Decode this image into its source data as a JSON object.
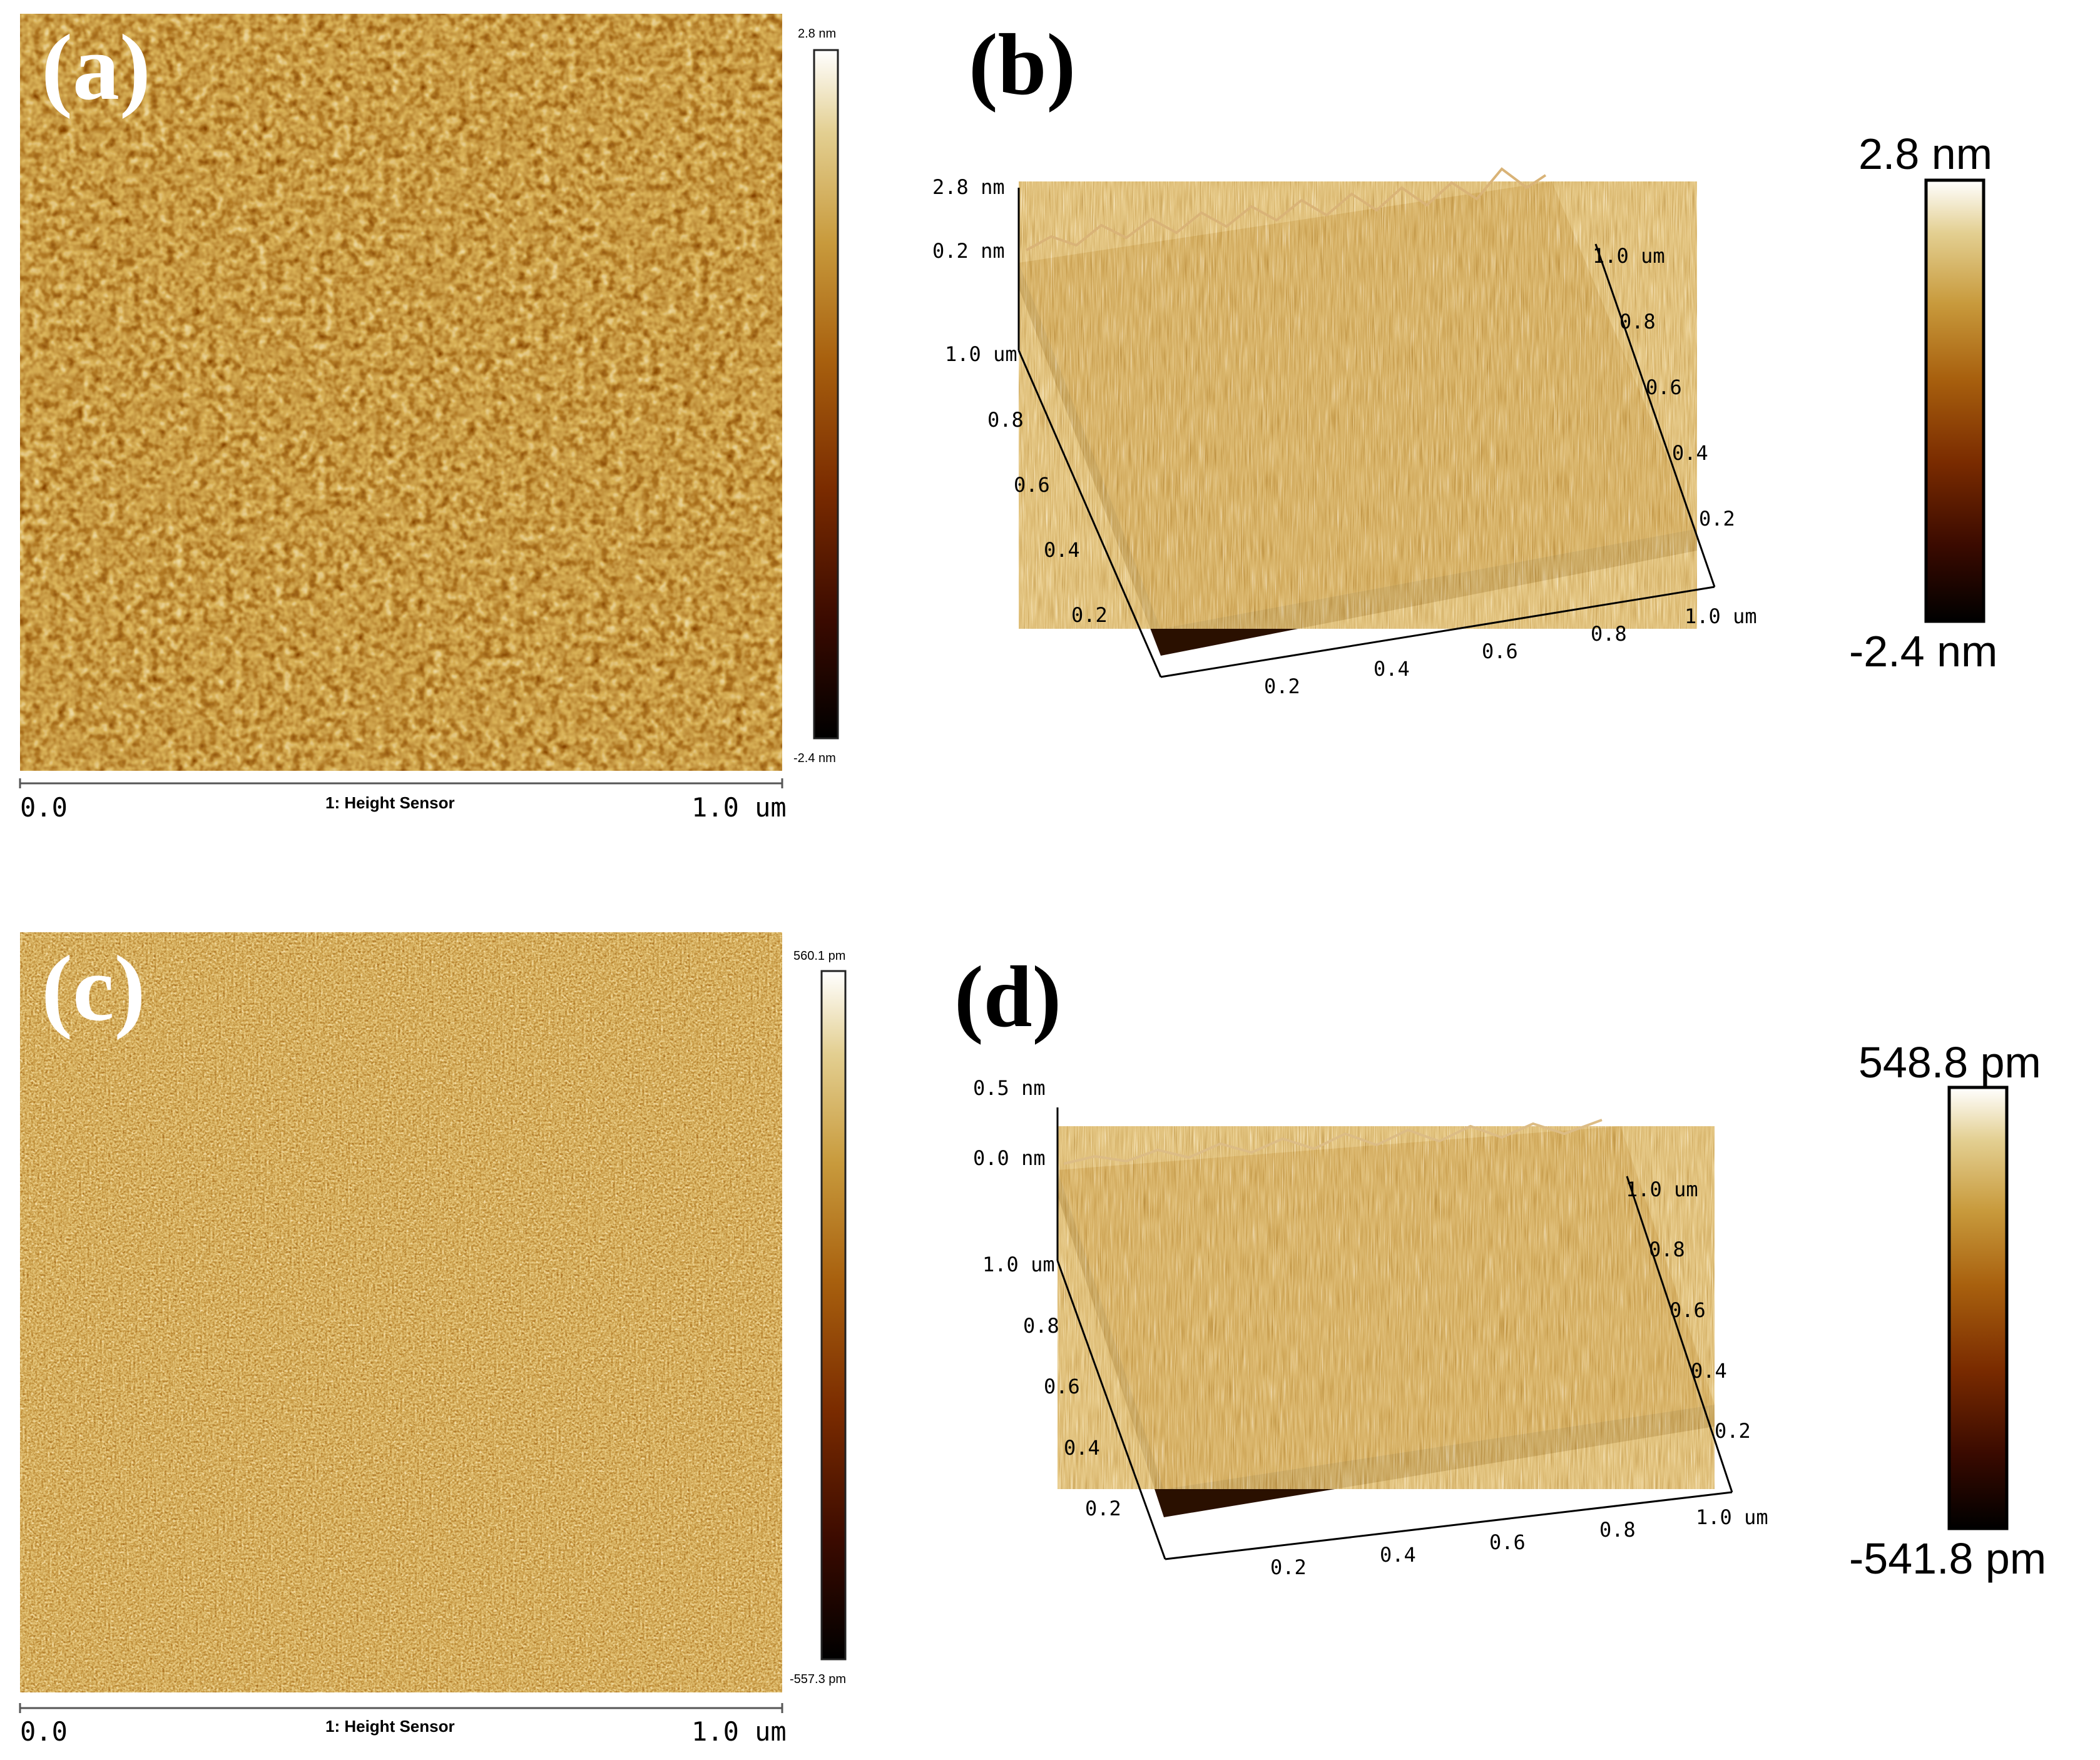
{
  "colors": {
    "afm_map": [
      "#000000",
      "#3a0a00",
      "#7a2b00",
      "#a8600e",
      "#c89a3c",
      "#e3cf91",
      "#ffffff"
    ]
  },
  "panels": [
    {
      "id": "a",
      "label": "(a)",
      "view": "2d-height-map",
      "colorbar": {
        "max_label": "2.8 nm",
        "min_label": "-2.4 nm"
      },
      "scan": {
        "start_label": "0.0",
        "end_label": "1.0 um",
        "channel_label": "1: Height Sensor"
      }
    },
    {
      "id": "b",
      "label": "(b)",
      "view": "3d-surface",
      "z_ticks": [
        "2.8 nm",
        "0.2 nm"
      ],
      "left_ticks": [
        "1.0 um",
        "0.8",
        "0.6",
        "0.4",
        "0.2"
      ],
      "right_ticks": [
        "1.0 um",
        "0.8",
        "0.6",
        "0.4",
        "0.2"
      ],
      "bottom_ticks": [
        "0.2",
        "0.4",
        "0.6",
        "0.8",
        "1.0 um"
      ],
      "colorbar": {
        "max_label": "2.8 nm",
        "min_label": "-2.4 nm"
      }
    },
    {
      "id": "c",
      "label": "(c)",
      "view": "2d-height-map",
      "colorbar": {
        "max_label": "560.1 pm",
        "min_label": "-557.3 pm"
      },
      "scan": {
        "start_label": "0.0",
        "end_label": "1.0 um",
        "channel_label": "1: Height Sensor"
      }
    },
    {
      "id": "d",
      "label": "(d)",
      "view": "3d-surface",
      "z_ticks": [
        "0.5 nm",
        "0.0 nm"
      ],
      "left_ticks": [
        "1.0 um",
        "0.8",
        "0.6",
        "0.4",
        "0.2"
      ],
      "right_ticks": [
        "1.0 um",
        "0.8",
        "0.6",
        "0.4",
        "0.2"
      ],
      "bottom_ticks": [
        "0.2",
        "0.4",
        "0.6",
        "0.8",
        "1.0 um"
      ],
      "colorbar": {
        "max_label": "548.8 pm",
        "min_label": "-541.8 pm"
      }
    }
  ]
}
